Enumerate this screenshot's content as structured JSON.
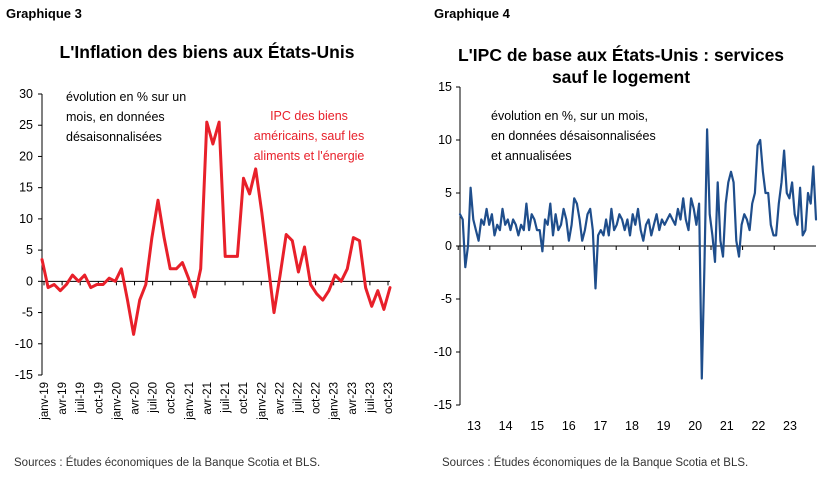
{
  "charts": [
    {
      "number_label": "Graphique 3",
      "title": "L'Inflation des biens aux États-Unis",
      "annotation": [
        "évolution en % sur un",
        "mois, en données",
        "désaisonnalisées"
      ],
      "series_label": [
        "IPC des biens",
        "américains, sauf les",
        "aliments et l'énergie"
      ],
      "sources": "Sources : Études économiques de la Banque Scotia et  BLS.",
      "series_color": "#e8202a"
    },
    {
      "number_label": "Graphique 4",
      "title_lines": [
        "L'IPC de base aux États-Unis : services",
        "sauf le logement"
      ],
      "annotation": [
        "évolution en %, sur un mois,",
        "en données désaisonnalisées",
        "et annualisées"
      ],
      "sources": "Sources : Études économiques de la Banque Scotia et BLS.",
      "series_color": "#1f4e8c"
    }
  ],
  "chart_data": [
    {
      "type": "line",
      "title": "L'Inflation des biens aux États-Unis",
      "ylim": [
        -15,
        30
      ],
      "yticks": [
        -15,
        -10,
        -5,
        0,
        5,
        10,
        15,
        20,
        25,
        30
      ],
      "xlabels": [
        "janv-19",
        "avr-19",
        "juil-19",
        "oct-19",
        "janv-20",
        "avr-20",
        "juil-20",
        "oct-20",
        "janv-21",
        "avr-21",
        "juil-21",
        "oct-21",
        "janv-22",
        "avr-22",
        "juil-22",
        "oct-22",
        "janv-23",
        "avr-23",
        "juil-23",
        "oct-23"
      ],
      "grid": false,
      "series": [
        {
          "name": "IPC des biens américains, sauf les aliments et l'énergie",
          "values": [
            3.5,
            -1,
            -0.5,
            -1.5,
            -0.5,
            1,
            0,
            1,
            -1,
            -0.5,
            -0.5,
            0.5,
            0,
            2,
            -3,
            -8.5,
            -3,
            -0.5,
            7,
            13,
            7,
            2,
            2,
            3,
            0.5,
            -2.5,
            2,
            25.5,
            22,
            25.5,
            4,
            4,
            4,
            16.5,
            14,
            18,
            11,
            3,
            -5,
            1,
            7.5,
            6.5,
            1.5,
            5.5,
            -0.5,
            -2,
            -3,
            -1.5,
            1,
            0,
            2,
            7,
            6.5,
            -1,
            -4,
            -1.5,
            -4.5,
            -1
          ]
        }
      ]
    },
    {
      "type": "line",
      "title": "L'IPC de base aux États-Unis : services sauf le logement",
      "ylim": [
        -15,
        15
      ],
      "yticks": [
        -15,
        -10,
        -5,
        0,
        5,
        10,
        15
      ],
      "xlabels": [
        "13",
        "14",
        "15",
        "16",
        "17",
        "18",
        "19",
        "20",
        "21",
        "22",
        "23"
      ],
      "grid": false,
      "series": [
        {
          "name": "IPC de base aux États-Unis : services sauf le logement",
          "values": [
            3,
            2.5,
            -2,
            0,
            5.5,
            2.5,
            1.5,
            0.5,
            2.5,
            2,
            3.5,
            2,
            3,
            1,
            2,
            1.5,
            3.5,
            2,
            2.5,
            1.5,
            2.5,
            2,
            1,
            2,
            1.5,
            4,
            1.5,
            3,
            2.5,
            1.5,
            1.5,
            -0.5,
            2.5,
            2,
            4,
            1,
            3,
            1.5,
            2,
            3.5,
            2.5,
            0.5,
            2,
            4.5,
            4,
            2.5,
            0.5,
            1.5,
            3,
            3.5,
            1.5,
            -4,
            1,
            1.5,
            1,
            2.5,
            1,
            3.5,
            1.5,
            2,
            3,
            2.5,
            1.5,
            2.5,
            1,
            3,
            2,
            3.5,
            1.5,
            0.5,
            2,
            2.5,
            1,
            2,
            3,
            1.5,
            2.5,
            2,
            2.5,
            3,
            2.5,
            2,
            3.5,
            2.5,
            4.5,
            2.5,
            1.5,
            4.5,
            3.5,
            2,
            4,
            -12.5,
            -2,
            11,
            3,
            1,
            -1.5,
            6,
            0.5,
            -1,
            4,
            6,
            7,
            6,
            0.5,
            -1,
            2,
            3,
            2.5,
            1.5,
            4,
            5,
            9.5,
            10,
            7,
            5,
            5,
            2,
            1,
            1,
            4,
            6,
            9,
            5,
            4.5,
            6,
            3,
            2,
            5.5,
            1,
            1.5,
            5,
            4,
            7.5,
            2.5
          ]
        }
      ]
    }
  ]
}
